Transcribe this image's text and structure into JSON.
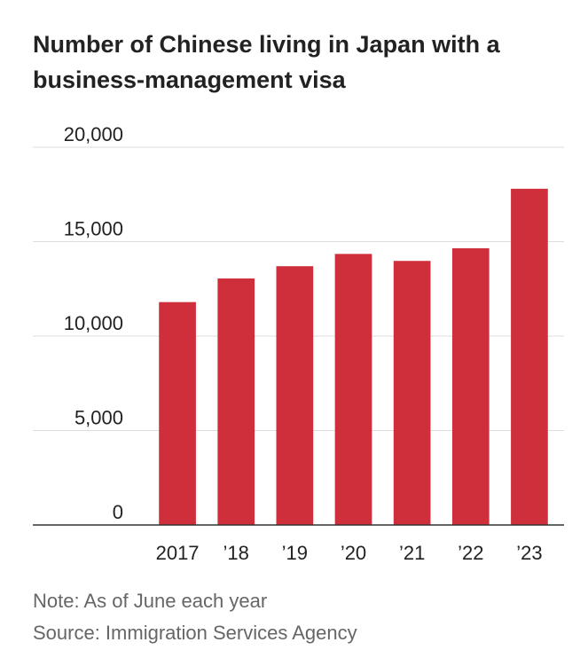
{
  "chart_data": {
    "type": "bar",
    "title": "Number of Chinese living in Japan with a business-management visa",
    "categories": [
      "2017",
      "’18",
      "’19",
      "’20",
      "’21",
      "’22",
      "’23"
    ],
    "values": [
      11800,
      13050,
      13700,
      14350,
      13980,
      14650,
      17800
    ],
    "y_ticks": [
      0,
      5000,
      10000,
      15000,
      20000
    ],
    "y_tick_labels": [
      "0",
      "5,000",
      "10,000",
      "15,000",
      "20,000"
    ],
    "ylim": [
      0,
      20000
    ],
    "xlabel": "",
    "ylabel": "",
    "grid": true,
    "bar_color": "#cf2f3a",
    "grid_color": "#dddddd",
    "axis_color": "#333333"
  },
  "notes": {
    "note": "Note: As of June each year",
    "source": "Source: Immigration Services Agency"
  }
}
